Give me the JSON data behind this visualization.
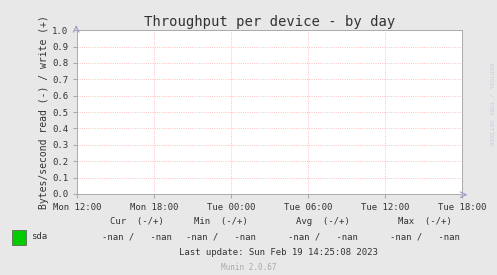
{
  "title": "Throughput per device - by day",
  "ylabel": "Bytes/second read (-) / write (+)",
  "background_color": "#e8e8e8",
  "plot_bg_color": "#ffffff",
  "grid_color": "#ffaaaa",
  "border_color": "#aaaaaa",
  "ylim": [
    0.0,
    1.0
  ],
  "yticks": [
    0.0,
    0.1,
    0.2,
    0.3,
    0.4,
    0.5,
    0.6,
    0.7,
    0.8,
    0.9,
    1.0
  ],
  "xtick_labels": [
    "Mon 12:00",
    "Mon 18:00",
    "Tue 00:00",
    "Tue 06:00",
    "Tue 12:00",
    "Tue 18:00"
  ],
  "xtick_positions": [
    0,
    1,
    2,
    3,
    4,
    5
  ],
  "legend_label": "sda",
  "legend_color": "#00cc00",
  "cur_label": "Cur  (-/+)",
  "cur_value": "-nan /   -nan",
  "min_label": "Min  (-/+)",
  "min_value": "-nan /   -nan",
  "avg_label": "Avg  (-/+)",
  "avg_value": "-nan /   -nan",
  "max_label": "Max  (-/+)",
  "max_value": "-nan /   -nan",
  "last_update": "Last update: Sun Feb 19 14:25:08 2023",
  "munin_version": "Munin 2.0.67",
  "watermark": "RRDTOOL / TOBI OETIKER",
  "title_fontsize": 10,
  "axis_label_fontsize": 7,
  "tick_fontsize": 6.5,
  "footer_fontsize": 6.5,
  "munin_fontsize": 5.5
}
